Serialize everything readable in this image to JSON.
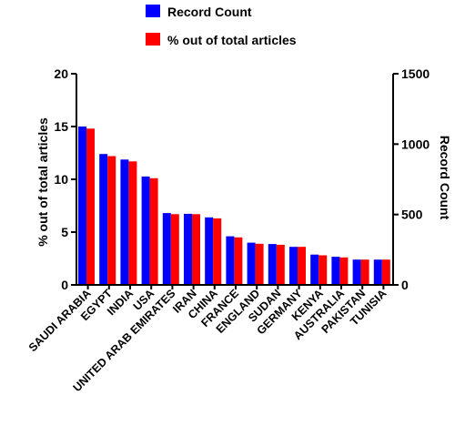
{
  "chart_data": {
    "type": "bar",
    "categories": [
      "SAUDI ARABIA",
      "EGYPT",
      "INDIA",
      "USA",
      "UNITED ARAB EMIRATES",
      "IRAN",
      "CHINA",
      "FRANCE",
      "ENGLAND",
      "SUDAN",
      "GERMANY",
      "KENYA",
      "AUSTRALIA",
      "PAKISTAN",
      "TUNISIA"
    ],
    "series": [
      {
        "name": "Record Count",
        "axis": "right",
        "color": "#0000ff",
        "values": [
          1125,
          930,
          890,
          770,
          510,
          505,
          480,
          345,
          300,
          290,
          270,
          215,
          200,
          180,
          180
        ]
      },
      {
        "name": "% out of total articles",
        "axis": "left",
        "color": "#ff0000",
        "values": [
          14.8,
          12.2,
          11.7,
          10.1,
          6.7,
          6.7,
          6.3,
          4.5,
          3.9,
          3.8,
          3.6,
          2.8,
          2.6,
          2.4,
          2.4
        ]
      }
    ],
    "ylabel": "% out of total articles",
    "ylim": [
      0,
      20
    ],
    "yticks": [
      0,
      5,
      10,
      15,
      20
    ],
    "y2label": "Record Count",
    "y2lim": [
      0,
      1500
    ],
    "y2ticks": [
      0,
      500,
      1000,
      1500
    ],
    "legend_position": "top",
    "grid": false
  }
}
